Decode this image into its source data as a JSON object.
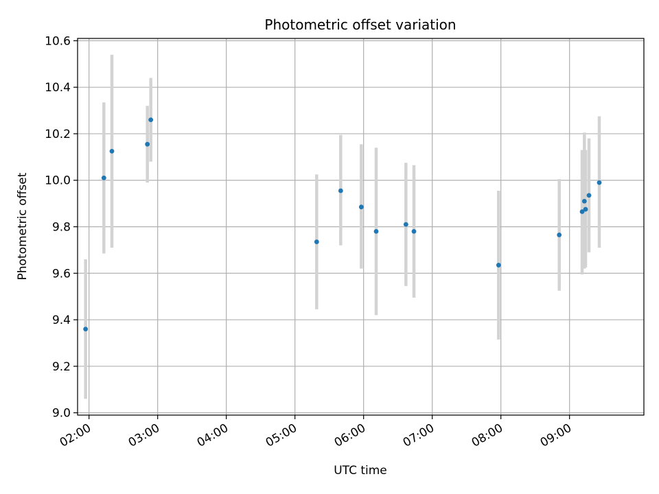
{
  "chart_data": {
    "type": "scatter",
    "title": "Photometric offset variation",
    "xlabel": "UTC time",
    "ylabel": "Photometric offset",
    "x_tick_labels": [
      "02:00",
      "03:00",
      "04:00",
      "05:00",
      "06:00",
      "07:00",
      "08:00",
      "09:00"
    ],
    "x_tick_values": [
      "02:00",
      "03:00",
      "04:00",
      "05:00",
      "06:00",
      "07:00",
      "08:00",
      "09:00"
    ],
    "xlim": [
      "01:50",
      "10:05"
    ],
    "y_tick_labels": [
      "9.0",
      "9.2",
      "9.4",
      "9.6",
      "9.8",
      "10.0",
      "10.2",
      "10.4",
      "10.6"
    ],
    "y_tick_values": [
      9.0,
      9.2,
      9.4,
      9.6,
      9.8,
      10.0,
      10.2,
      10.4,
      10.6
    ],
    "ylim": [
      8.99,
      10.61
    ],
    "grid": true,
    "marker_color": "#1f77b4",
    "errorbar_color": "#d3d3d3",
    "points": [
      {
        "x": "01:57",
        "y": 9.36,
        "ylow": 9.06,
        "yhigh": 9.66
      },
      {
        "x": "02:13",
        "y": 10.01,
        "ylow": 9.685,
        "yhigh": 10.335
      },
      {
        "x": "02:20",
        "y": 10.125,
        "ylow": 9.71,
        "yhigh": 10.54
      },
      {
        "x": "02:51",
        "y": 10.155,
        "ylow": 9.99,
        "yhigh": 10.32
      },
      {
        "x": "02:54",
        "y": 10.26,
        "ylow": 10.08,
        "yhigh": 10.44
      },
      {
        "x": "05:19",
        "y": 9.735,
        "ylow": 9.445,
        "yhigh": 10.025
      },
      {
        "x": "05:40",
        "y": 9.955,
        "ylow": 9.72,
        "yhigh": 10.195
      },
      {
        "x": "05:58",
        "y": 9.885,
        "ylow": 9.62,
        "yhigh": 10.155
      },
      {
        "x": "06:11",
        "y": 9.78,
        "ylow": 9.42,
        "yhigh": 10.14
      },
      {
        "x": "06:37",
        "y": 9.81,
        "ylow": 9.545,
        "yhigh": 10.075
      },
      {
        "x": "06:44",
        "y": 9.78,
        "ylow": 9.495,
        "yhigh": 10.065
      },
      {
        "x": "07:58",
        "y": 9.635,
        "ylow": 9.315,
        "yhigh": 9.955
      },
      {
        "x": "08:51",
        "y": 9.765,
        "ylow": 9.525,
        "yhigh": 10.005
      },
      {
        "x": "09:11",
        "y": 9.865,
        "ylow": 9.595,
        "yhigh": 10.13
      },
      {
        "x": "09:13",
        "y": 9.91,
        "ylow": 9.62,
        "yhigh": 10.205
      },
      {
        "x": "09:14",
        "y": 9.875,
        "ylow": 9.625,
        "yhigh": 10.13
      },
      {
        "x": "09:17",
        "y": 9.935,
        "ylow": 9.69,
        "yhigh": 10.18
      },
      {
        "x": "09:26",
        "y": 9.99,
        "ylow": 9.71,
        "yhigh": 10.275
      }
    ]
  }
}
